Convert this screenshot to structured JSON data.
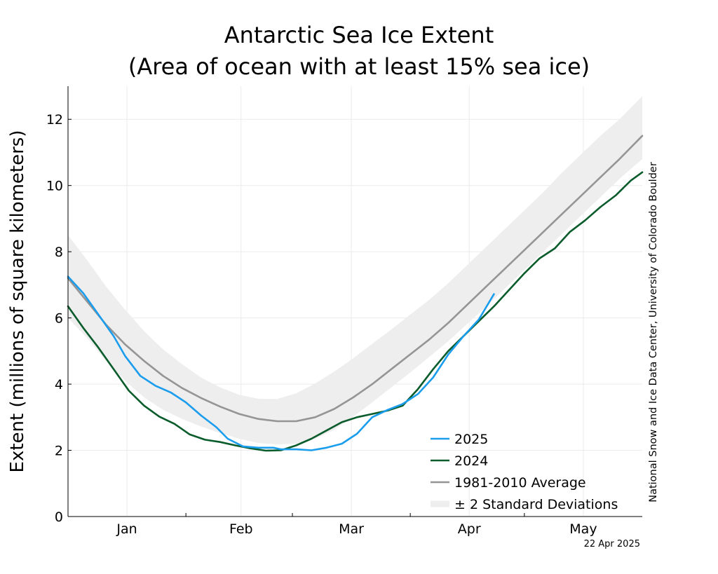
{
  "chart_data": {
    "type": "line",
    "title_line1": "Antarctic Sea Ice Extent",
    "title_line2": "(Area of ocean with at least 15% sea ice)",
    "ylabel": "Extent (millions of square kilometers)",
    "xlabel": "",
    "ylim": [
      0,
      13
    ],
    "yticks": [
      0,
      2,
      4,
      6,
      8,
      10,
      12
    ],
    "xlim": [
      0,
      151
    ],
    "x_unit": "day of year",
    "months": [
      {
        "label": "Jan",
        "center": 15.5,
        "end": 31
      },
      {
        "label": "Feb",
        "center": 45.5,
        "end": 59
      },
      {
        "label": "Mar",
        "center": 74.5,
        "end": 90
      },
      {
        "label": "Apr",
        "center": 105.5,
        "end": 120
      },
      {
        "label": "May",
        "center": 135.5,
        "end": 151
      }
    ],
    "grid": true,
    "legend_position": "bottom-right",
    "series": [
      {
        "name": "2025",
        "color": "#1b9ded",
        "x": [
          0,
          4,
          8,
          12,
          15,
          19,
          23,
          27,
          31,
          35,
          39,
          42,
          46,
          50,
          54,
          56,
          60,
          64,
          68,
          72,
          76,
          80,
          84,
          88,
          92,
          96,
          100,
          104,
          108,
          112
        ],
        "y": [
          7.25,
          6.75,
          6.1,
          5.45,
          4.85,
          4.25,
          3.95,
          3.75,
          3.45,
          3.05,
          2.7,
          2.35,
          2.12,
          2.08,
          2.08,
          2.03,
          2.03,
          2.0,
          2.08,
          2.2,
          2.5,
          3.0,
          3.22,
          3.4,
          3.7,
          4.2,
          4.9,
          5.45,
          5.95,
          6.72
        ]
      },
      {
        "name": "2024",
        "color": "#0a5c2c",
        "x": [
          0,
          4,
          8,
          12,
          16,
          20,
          24,
          28,
          32,
          36,
          40,
          44,
          48,
          52,
          56,
          60,
          64,
          68,
          72,
          76,
          80,
          84,
          88,
          92,
          96,
          100,
          104,
          108,
          112,
          116,
          120,
          124,
          128,
          132,
          136,
          140,
          144,
          148,
          151
        ],
        "y": [
          6.35,
          5.7,
          5.1,
          4.45,
          3.8,
          3.35,
          3.02,
          2.8,
          2.48,
          2.32,
          2.25,
          2.15,
          2.06,
          1.99,
          2.0,
          2.15,
          2.35,
          2.6,
          2.85,
          3.0,
          3.1,
          3.2,
          3.35,
          3.85,
          4.45,
          5.0,
          5.45,
          5.9,
          6.35,
          6.85,
          7.35,
          7.8,
          8.1,
          8.6,
          8.95,
          9.35,
          9.7,
          10.15,
          10.4
        ]
      },
      {
        "name": "1981-2010 Average",
        "color": "#959595",
        "x": [
          0,
          5,
          10,
          15,
          20,
          25,
          30,
          35,
          40,
          45,
          50,
          55,
          60,
          65,
          70,
          75,
          80,
          85,
          90,
          95,
          100,
          105,
          110,
          115,
          120,
          125,
          130,
          135,
          140,
          145,
          151
        ],
        "y": [
          7.2,
          6.5,
          5.8,
          5.2,
          4.7,
          4.25,
          3.88,
          3.58,
          3.32,
          3.1,
          2.95,
          2.88,
          2.88,
          3.0,
          3.25,
          3.6,
          4.0,
          4.45,
          4.9,
          5.35,
          5.85,
          6.4,
          6.95,
          7.5,
          8.05,
          8.6,
          9.15,
          9.7,
          10.25,
          10.8,
          11.5
        ]
      }
    ],
    "band": {
      "name": "± 2 Standard Deviations",
      "color": "#eeeeee",
      "x": [
        0,
        5,
        10,
        15,
        20,
        25,
        30,
        35,
        40,
        45,
        50,
        55,
        60,
        65,
        70,
        75,
        80,
        85,
        90,
        95,
        100,
        105,
        110,
        115,
        120,
        125,
        130,
        135,
        140,
        145,
        151
      ],
      "upper": [
        8.5,
        7.75,
        6.95,
        6.25,
        5.6,
        5.05,
        4.6,
        4.2,
        3.9,
        3.68,
        3.56,
        3.55,
        3.72,
        4.02,
        4.38,
        4.78,
        5.22,
        5.65,
        6.1,
        6.55,
        7.05,
        7.6,
        8.15,
        8.7,
        9.25,
        9.8,
        10.4,
        10.95,
        11.5,
        12.0,
        12.7
      ],
      "lower": [
        6.0,
        5.4,
        4.7,
        4.1,
        3.6,
        3.22,
        2.95,
        2.72,
        2.52,
        2.35,
        2.22,
        2.18,
        2.2,
        2.35,
        2.62,
        3.02,
        3.45,
        3.9,
        4.35,
        4.82,
        5.3,
        5.82,
        6.35,
        6.9,
        7.45,
        8.0,
        8.55,
        9.1,
        9.65,
        10.2,
        10.8
      ]
    },
    "credit": "National Snow and Ice Data Center, University of Colorado Boulder",
    "date_stamp": "22 Apr 2025"
  }
}
